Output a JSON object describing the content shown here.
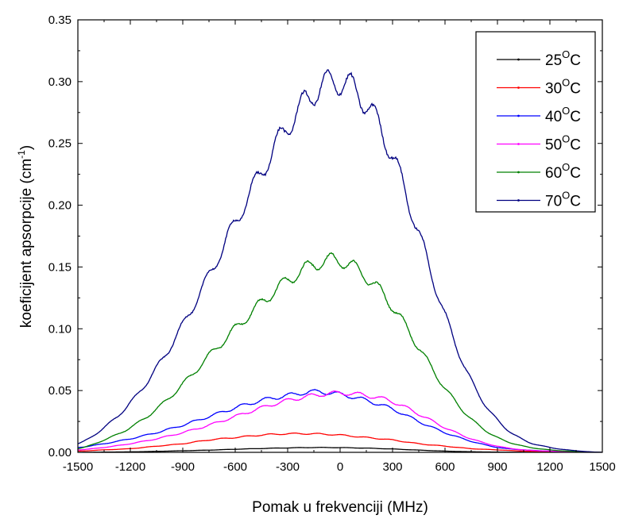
{
  "chart_data": {
    "type": "line",
    "xlabel": "Pomak u frekvenciji (MHz)",
    "ylabel_main": "koeficijent apsorpcije (cm",
    "ylabel_sup": "-1",
    "ylabel_close": ")",
    "xlim": [
      -1500,
      1500
    ],
    "ylim": [
      0,
      0.35
    ],
    "x_ticks": [
      -1500,
      -1200,
      -900,
      -600,
      -300,
      0,
      300,
      600,
      900,
      1200,
      1500
    ],
    "x_tick_labels": [
      "-1500",
      "-1200",
      "-900",
      "-600",
      "-300",
      "0",
      "300",
      "600",
      "900",
      "1200",
      "1500"
    ],
    "y_ticks": [
      0,
      0.05,
      0.1,
      0.15,
      0.2,
      0.25,
      0.3,
      0.35
    ],
    "y_tick_labels": [
      "0.00",
      "0.05",
      "0.10",
      "0.15",
      "0.20",
      "0.25",
      "0.30",
      "0.35"
    ],
    "grid": false,
    "legend_position": "top-right",
    "x": [
      -1500,
      -1350,
      -1200,
      -1050,
      -900,
      -750,
      -600,
      -450,
      -300,
      -150,
      0,
      150,
      300,
      450,
      600,
      750,
      900,
      1050,
      1200,
      1350,
      1500
    ],
    "series": [
      {
        "name": "25",
        "unit": "C",
        "sup": "O",
        "color": "#000000",
        "values": [
          0.0,
          0.0002,
          0.0004,
          0.0008,
          0.0013,
          0.0018,
          0.0025,
          0.0031,
          0.0036,
          0.0039,
          0.0038,
          0.0034,
          0.0027,
          0.0018,
          0.001,
          0.0005,
          0.0002,
          0.0001,
          0.0,
          0.0,
          0.0
        ]
      },
      {
        "name": "30",
        "unit": "C",
        "sup": "O",
        "color": "#ff0000",
        "values": [
          0.001,
          0.002,
          0.003,
          0.005,
          0.007,
          0.01,
          0.012,
          0.014,
          0.015,
          0.015,
          0.014,
          0.012,
          0.01,
          0.007,
          0.005,
          0.003,
          0.002,
          0.001,
          0.0005,
          0.0002,
          0.0
        ]
      },
      {
        "name": "40",
        "unit": "C",
        "sup": "O",
        "color": "#0000ff",
        "values": [
          0.004,
          0.007,
          0.011,
          0.016,
          0.022,
          0.029,
          0.036,
          0.042,
          0.046,
          0.049,
          0.047,
          0.042,
          0.035,
          0.025,
          0.016,
          0.009,
          0.004,
          0.002,
          0.001,
          0.0003,
          0.0
        ]
      },
      {
        "name": "50",
        "unit": "C",
        "sup": "O",
        "color": "#ff00ff",
        "values": [
          0.002,
          0.004,
          0.007,
          0.011,
          0.016,
          0.022,
          0.029,
          0.036,
          0.042,
          0.046,
          0.048,
          0.046,
          0.041,
          0.031,
          0.02,
          0.011,
          0.005,
          0.002,
          0.001,
          0.0003,
          0.0
        ]
      },
      {
        "name": "60",
        "unit": "C",
        "sup": "O",
        "color": "#008000",
        "values": [
          0.003,
          0.01,
          0.02,
          0.035,
          0.055,
          0.078,
          0.1,
          0.121,
          0.139,
          0.152,
          0.155,
          0.142,
          0.118,
          0.085,
          0.052,
          0.027,
          0.012,
          0.005,
          0.002,
          0.0007,
          0.0
        ]
      },
      {
        "name": "70",
        "unit": "C",
        "sup": "O",
        "color": "#000080",
        "values": [
          0.007,
          0.02,
          0.04,
          0.068,
          0.103,
          0.143,
          0.186,
          0.227,
          0.264,
          0.291,
          0.3,
          0.282,
          0.24,
          0.177,
          0.111,
          0.058,
          0.026,
          0.01,
          0.004,
          0.0013,
          0.0
        ]
      }
    ]
  }
}
